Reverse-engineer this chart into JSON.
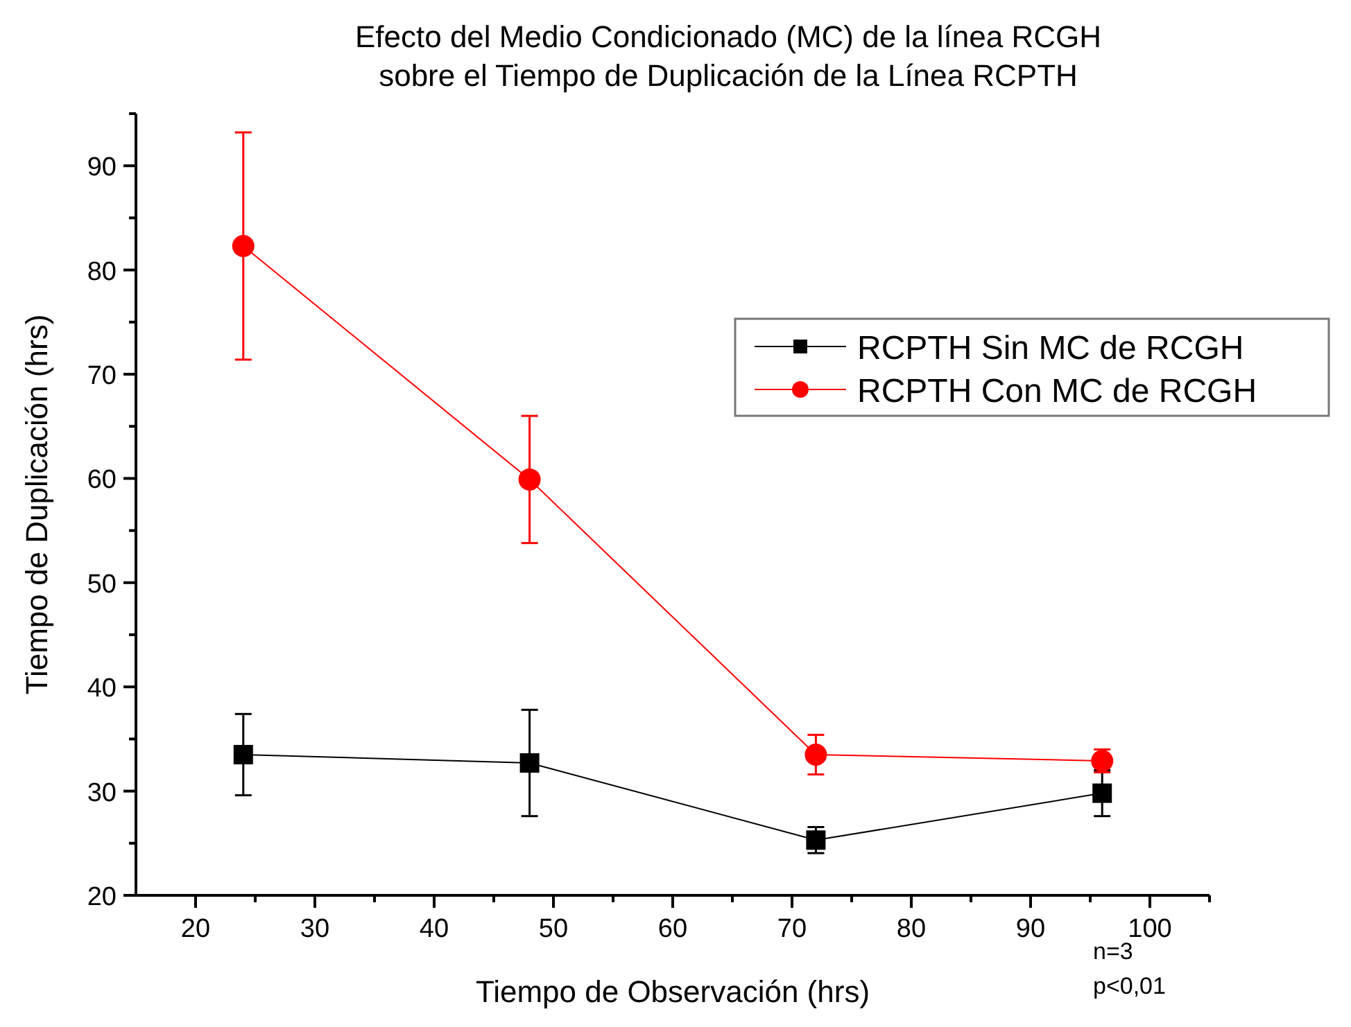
{
  "chart_data": {
    "type": "line",
    "title": "Efecto del Medio Condicionado (MC) de la línea RCGH\nsobre el Tiempo de Duplicación de la Línea RCPTH",
    "xlabel": "Tiempo de Observación (hrs)",
    "ylabel": "Tiempo de Duplicación (hrs)",
    "x": [
      24,
      48,
      72,
      96
    ],
    "series": [
      {
        "name": "RCPTH Sin MC de RCGH",
        "color": "#000000",
        "marker": "square",
        "values": [
          33.5,
          32.7,
          25.3,
          29.8
        ],
        "errors": [
          3.9,
          5.1,
          1.25,
          2.2
        ]
      },
      {
        "name": "RCPTH Con MC de RCGH",
        "color": "#ff0000",
        "marker": "circle",
        "values": [
          82.3,
          59.9,
          33.5,
          32.9
        ],
        "errors": [
          10.9,
          6.1,
          1.9,
          1.1
        ]
      }
    ],
    "xlim": [
      15,
      105
    ],
    "xticks": [
      20,
      {
        "value": 25,
        "label": null
      },
      30,
      {
        "value": 35,
        "label": null
      },
      40,
      {
        "value": 45,
        "label": null
      },
      50,
      {
        "value": 55,
        "label": null
      },
      60,
      {
        "value": 65,
        "label": null
      },
      70,
      {
        "value": 75,
        "label": null
      },
      80,
      {
        "value": 85,
        "label": null
      },
      90,
      {
        "value": 95,
        "label": null
      },
      100,
      {
        "value": 105,
        "label": null
      }
    ],
    "ylim": [
      20,
      95
    ],
    "yticks": [
      20,
      {
        "value": 25,
        "label": null
      },
      30,
      {
        "value": 35,
        "label": null
      },
      40,
      {
        "value": 45,
        "label": null
      },
      50,
      {
        "value": 55,
        "label": null
      },
      60,
      {
        "value": 65,
        "label": null
      },
      70,
      {
        "value": 75,
        "label": null
      },
      80,
      {
        "value": 85,
        "label": null
      },
      90,
      {
        "value": 95,
        "label": null
      }
    ],
    "grid": false,
    "legend": "right",
    "line_style": "solid",
    "annotations": [
      "n=3",
      "p<0,01"
    ]
  }
}
